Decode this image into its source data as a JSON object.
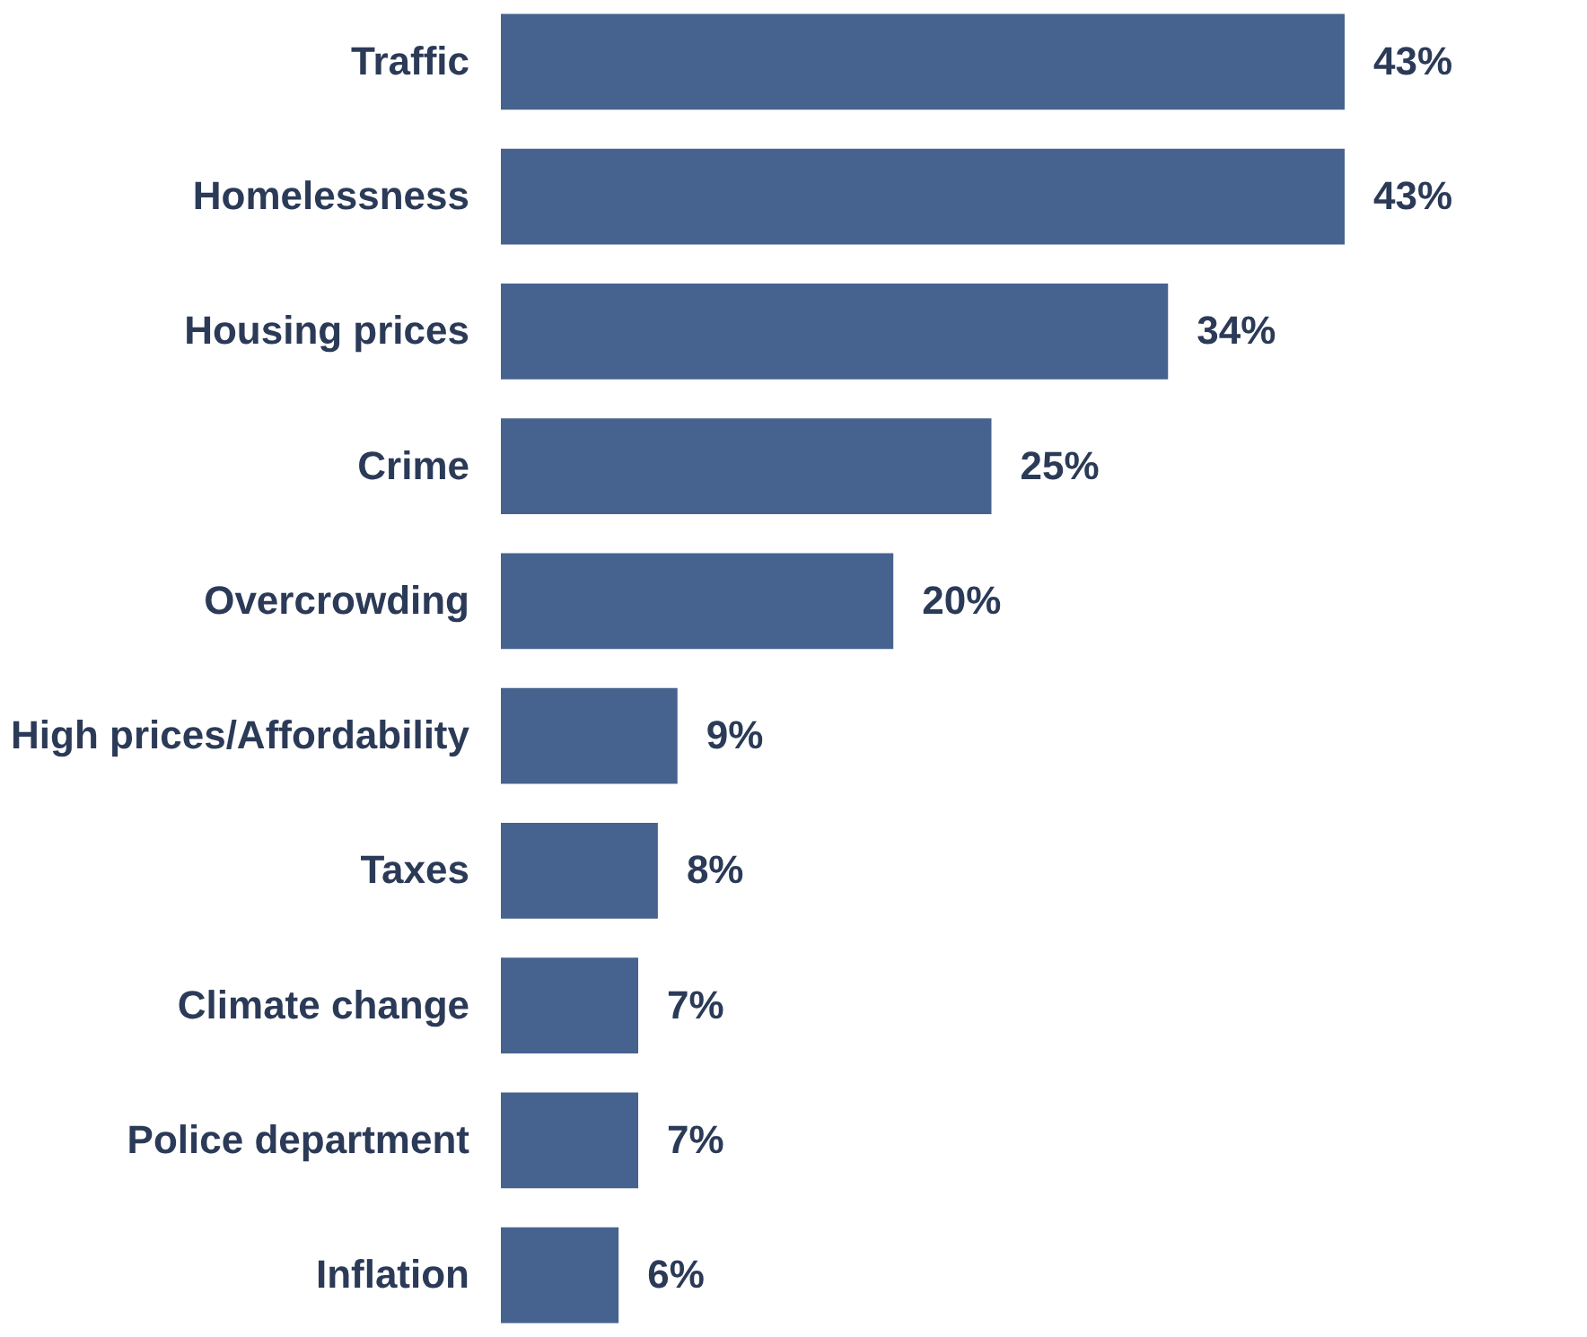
{
  "chart_data": {
    "type": "bar",
    "orientation": "horizontal",
    "categories": [
      "Traffic",
      "Homelessness",
      "Housing prices",
      "Crime",
      "Overcrowding",
      "High prices/Affordability",
      "Taxes",
      "Climate change",
      "Police department",
      "Inflation"
    ],
    "values": [
      43,
      43,
      34,
      25,
      20,
      9,
      8,
      7,
      7,
      6
    ],
    "value_labels": [
      "43%",
      "43%",
      "34%",
      "25%",
      "20%",
      "9%",
      "8%",
      "7%",
      "7%",
      "6%"
    ],
    "color": "#46638f"
  }
}
